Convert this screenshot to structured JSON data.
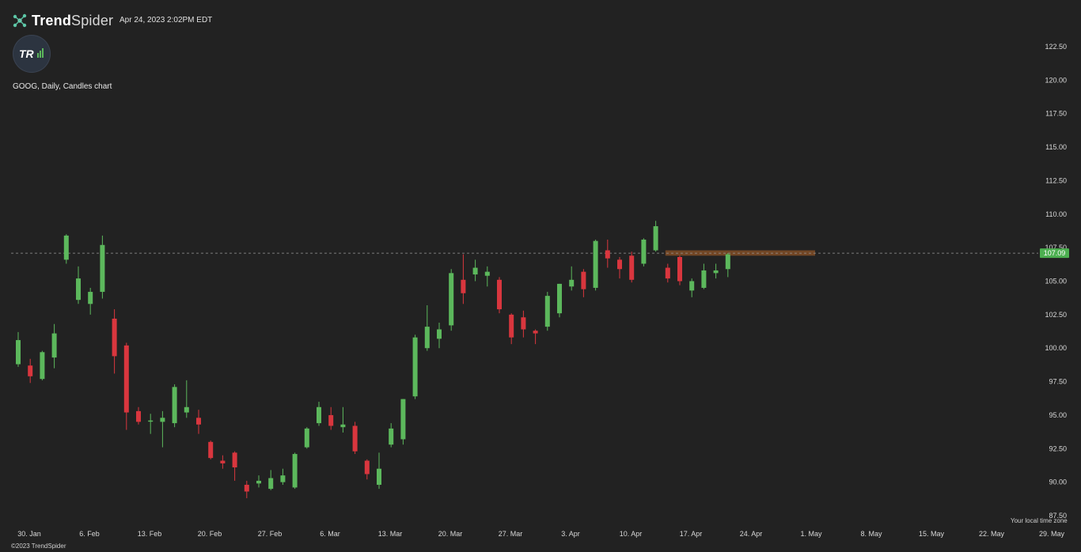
{
  "header": {
    "brand_bold": "Trend",
    "brand_light": "Spider",
    "timestamp": "Apr 24, 2023 2:02PM EDT"
  },
  "logo": {
    "text": "TR"
  },
  "chart_label": "GOOG, Daily, Candles chart",
  "footer": {
    "copyright": "©2023 TrendSpider",
    "timezone": "Your local time zone"
  },
  "colors": {
    "background": "#222222",
    "up": "#5cb85c",
    "down": "#d9363e",
    "last_price_bg": "#4caf50",
    "resistance": "#7a4a26"
  },
  "chart_data": {
    "type": "candlestick",
    "symbol": "GOOG",
    "interval": "Daily",
    "ylim": [
      87.5,
      122.5
    ],
    "y_ticks": [
      122.5,
      120.0,
      117.5,
      115.0,
      112.5,
      110.0,
      107.5,
      105.0,
      102.5,
      100.0,
      97.5,
      95.0,
      92.5,
      90.0,
      87.5
    ],
    "x_ticks": [
      "30. Jan",
      "6. Feb",
      "13. Feb",
      "20. Feb",
      "27. Feb",
      "6. Mar",
      "13. Mar",
      "20. Mar",
      "27. Mar",
      "3. Apr",
      "10. Apr",
      "17. Apr",
      "24. Apr",
      "1. May",
      "8. May",
      "15. May",
      "22. May",
      "29. May"
    ],
    "last_price": 107.09,
    "resistance_zone": {
      "from_date": "14. Apr",
      "to_date": "5. May",
      "low": 106.9,
      "high": 107.3
    },
    "candles": [
      {
        "date": "2023-01-27",
        "o": 98.8,
        "h": 101.2,
        "l": 98.6,
        "c": 100.6
      },
      {
        "date": "2023-01-30",
        "o": 98.7,
        "h": 99.2,
        "l": 97.4,
        "c": 97.9
      },
      {
        "date": "2023-01-31",
        "o": 97.7,
        "h": 99.8,
        "l": 97.6,
        "c": 99.7
      },
      {
        "date": "2023-02-01",
        "o": 99.3,
        "h": 101.8,
        "l": 98.5,
        "c": 101.1
      },
      {
        "date": "2023-02-02",
        "o": 106.6,
        "h": 108.5,
        "l": 106.3,
        "c": 108.4
      },
      {
        "date": "2023-02-03",
        "o": 103.6,
        "h": 106.1,
        "l": 103.3,
        "c": 105.2
      },
      {
        "date": "2023-02-06",
        "o": 103.3,
        "h": 104.5,
        "l": 102.5,
        "c": 104.2
      },
      {
        "date": "2023-02-07",
        "o": 104.2,
        "h": 108.4,
        "l": 103.7,
        "c": 107.7
      },
      {
        "date": "2023-02-08",
        "o": 102.2,
        "h": 102.9,
        "l": 98.1,
        "c": 99.4
      },
      {
        "date": "2023-02-09",
        "o": 100.2,
        "h": 100.4,
        "l": 93.9,
        "c": 95.2
      },
      {
        "date": "2023-02-10",
        "o": 95.3,
        "h": 95.6,
        "l": 94.3,
        "c": 94.5
      },
      {
        "date": "2023-02-13",
        "o": 94.6,
        "h": 95.1,
        "l": 93.6,
        "c": 94.6
      },
      {
        "date": "2023-02-14",
        "o": 94.5,
        "h": 95.3,
        "l": 92.6,
        "c": 94.8
      },
      {
        "date": "2023-02-15",
        "o": 94.4,
        "h": 97.3,
        "l": 94.1,
        "c": 97.1
      },
      {
        "date": "2023-02-16",
        "o": 95.2,
        "h": 97.6,
        "l": 94.8,
        "c": 95.6
      },
      {
        "date": "2023-02-17",
        "o": 94.8,
        "h": 95.4,
        "l": 93.6,
        "c": 94.3
      },
      {
        "date": "2023-02-21",
        "o": 93.0,
        "h": 93.1,
        "l": 91.7,
        "c": 91.8
      },
      {
        "date": "2023-02-22",
        "o": 91.6,
        "h": 92.0,
        "l": 91.0,
        "c": 91.4
      },
      {
        "date": "2023-02-23",
        "o": 92.2,
        "h": 92.3,
        "l": 90.1,
        "c": 91.1
      },
      {
        "date": "2023-02-24",
        "o": 89.8,
        "h": 90.1,
        "l": 88.8,
        "c": 89.3
      },
      {
        "date": "2023-02-27",
        "o": 89.9,
        "h": 90.5,
        "l": 89.6,
        "c": 90.1
      },
      {
        "date": "2023-02-28",
        "o": 89.5,
        "h": 90.9,
        "l": 89.4,
        "c": 90.3
      },
      {
        "date": "2023-03-01",
        "o": 90.0,
        "h": 91.0,
        "l": 89.8,
        "c": 90.5
      },
      {
        "date": "2023-03-02",
        "o": 89.6,
        "h": 92.2,
        "l": 89.5,
        "c": 92.1
      },
      {
        "date": "2023-03-03",
        "o": 92.6,
        "h": 94.1,
        "l": 92.5,
        "c": 94.0
      },
      {
        "date": "2023-03-06",
        "o": 94.4,
        "h": 96.0,
        "l": 94.2,
        "c": 95.6
      },
      {
        "date": "2023-03-07",
        "o": 95.0,
        "h": 95.6,
        "l": 93.9,
        "c": 94.2
      },
      {
        "date": "2023-03-08",
        "o": 94.1,
        "h": 95.6,
        "l": 93.7,
        "c": 94.3
      },
      {
        "date": "2023-03-09",
        "o": 94.2,
        "h": 94.5,
        "l": 92.1,
        "c": 92.3
      },
      {
        "date": "2023-03-10",
        "o": 91.6,
        "h": 91.7,
        "l": 90.2,
        "c": 90.6
      },
      {
        "date": "2023-03-13",
        "o": 89.8,
        "h": 92.2,
        "l": 89.5,
        "c": 91.0
      },
      {
        "date": "2023-03-14",
        "o": 92.8,
        "h": 94.4,
        "l": 92.6,
        "c": 94.0
      },
      {
        "date": "2023-03-15",
        "o": 93.2,
        "h": 96.2,
        "l": 92.8,
        "c": 96.2
      },
      {
        "date": "2023-03-16",
        "o": 96.4,
        "h": 101.0,
        "l": 96.2,
        "c": 100.8
      },
      {
        "date": "2023-03-17",
        "o": 100.0,
        "h": 103.2,
        "l": 99.8,
        "c": 101.6
      },
      {
        "date": "2023-03-20",
        "o": 100.7,
        "h": 101.9,
        "l": 100.0,
        "c": 101.4
      },
      {
        "date": "2023-03-21",
        "o": 101.7,
        "h": 105.9,
        "l": 101.3,
        "c": 105.6
      },
      {
        "date": "2023-03-22",
        "o": 105.1,
        "h": 107.0,
        "l": 103.3,
        "c": 104.1
      },
      {
        "date": "2023-03-23",
        "o": 105.5,
        "h": 106.6,
        "l": 105.0,
        "c": 106.0
      },
      {
        "date": "2023-03-24",
        "o": 105.4,
        "h": 106.1,
        "l": 104.6,
        "c": 105.7
      },
      {
        "date": "2023-03-27",
        "o": 105.1,
        "h": 105.3,
        "l": 102.6,
        "c": 102.9
      },
      {
        "date": "2023-03-28",
        "o": 102.5,
        "h": 102.6,
        "l": 100.3,
        "c": 100.8
      },
      {
        "date": "2023-03-29",
        "o": 102.3,
        "h": 102.8,
        "l": 100.8,
        "c": 101.4
      },
      {
        "date": "2023-03-30",
        "o": 101.3,
        "h": 101.4,
        "l": 100.3,
        "c": 101.1
      },
      {
        "date": "2023-03-31",
        "o": 101.6,
        "h": 104.2,
        "l": 101.3,
        "c": 103.9
      },
      {
        "date": "2023-04-03",
        "o": 102.6,
        "h": 104.8,
        "l": 102.3,
        "c": 104.8
      },
      {
        "date": "2023-04-04",
        "o": 104.6,
        "h": 106.1,
        "l": 104.3,
        "c": 105.1
      },
      {
        "date": "2023-04-05",
        "o": 105.7,
        "h": 105.9,
        "l": 103.8,
        "c": 104.4
      },
      {
        "date": "2023-04-06",
        "o": 104.5,
        "h": 108.1,
        "l": 104.3,
        "c": 108.0
      },
      {
        "date": "2023-04-10",
        "o": 107.3,
        "h": 108.1,
        "l": 106.0,
        "c": 106.7
      },
      {
        "date": "2023-04-11",
        "o": 106.6,
        "h": 106.8,
        "l": 105.2,
        "c": 105.9
      },
      {
        "date": "2023-04-12",
        "o": 106.9,
        "h": 107.2,
        "l": 104.9,
        "c": 105.1
      },
      {
        "date": "2023-04-13",
        "o": 106.3,
        "h": 108.2,
        "l": 106.1,
        "c": 108.1
      },
      {
        "date": "2023-04-14",
        "o": 107.3,
        "h": 109.5,
        "l": 107.2,
        "c": 109.1
      },
      {
        "date": "2023-04-17",
        "o": 106.0,
        "h": 106.3,
        "l": 104.9,
        "c": 105.2
      },
      {
        "date": "2023-04-18",
        "o": 106.8,
        "h": 106.9,
        "l": 104.7,
        "c": 105.0
      },
      {
        "date": "2023-04-19",
        "o": 104.3,
        "h": 105.2,
        "l": 103.8,
        "c": 105.0
      },
      {
        "date": "2023-04-20",
        "o": 104.5,
        "h": 106.3,
        "l": 104.4,
        "c": 105.8
      },
      {
        "date": "2023-04-21",
        "o": 105.6,
        "h": 106.3,
        "l": 105.2,
        "c": 105.8
      },
      {
        "date": "2023-04-24",
        "o": 105.9,
        "h": 107.1,
        "l": 105.3,
        "c": 107.0
      }
    ]
  }
}
